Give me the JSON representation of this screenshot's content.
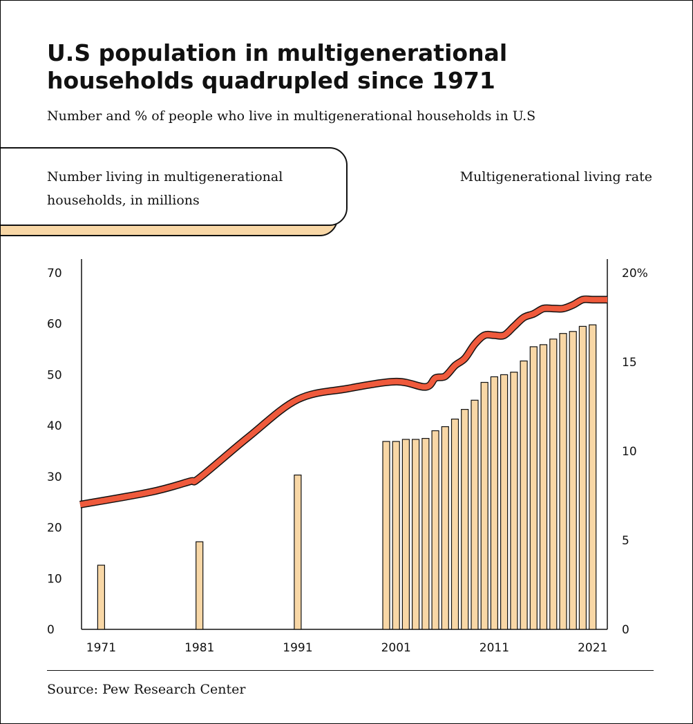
{
  "title": "U.S population in multigenerational households quadrupled since 1971",
  "subtitle": "Number and % of people who live in multigenerational households in U.S",
  "source": "Source: Pew Research Center",
  "colors": {
    "bar_fill": "#f8d7a6",
    "bar_stroke": "#111111",
    "line": "#ef5a3c",
    "line_outline": "#111111",
    "text": "#111111"
  },
  "chart_data": {
    "type": "bar",
    "x": [
      1971,
      1981,
      1991,
      2000,
      2001,
      2002,
      2003,
      2004,
      2005,
      2006,
      2007,
      2008,
      2009,
      2010,
      2011,
      2012,
      2013,
      2014,
      2015,
      2016,
      2017,
      2018,
      2019,
      2020,
      2021
    ],
    "series": [
      {
        "name": "Number living in multigenerational households, in millions",
        "type": "bar",
        "axis": "left",
        "values": [
          12.6,
          17.2,
          30.3,
          36.9,
          36.9,
          37.3,
          37.3,
          37.5,
          39.0,
          39.8,
          41.3,
          43.2,
          45.0,
          48.5,
          49.6,
          50.0,
          50.5,
          52.7,
          55.5,
          55.9,
          57.0,
          58.1,
          58.5,
          59.5,
          59.8
        ]
      },
      {
        "name": "Multigenerational living rate",
        "type": "line",
        "axis": "right",
        "x": [
          1971,
          1976,
          1980,
          1981,
          1986,
          1991,
          1996,
          2001,
          2004,
          2005,
          2006,
          2007,
          2008,
          2009,
          2010,
          2011,
          2012,
          2013,
          2014,
          2015,
          2016,
          2017,
          2018,
          2019,
          2020,
          2021,
          2022
        ],
        "values": [
          7.0,
          7.7,
          8.3,
          8.5,
          10.8,
          12.9,
          13.5,
          13.9,
          13.6,
          14.1,
          14.2,
          14.8,
          15.2,
          16.0,
          16.5,
          16.5,
          16.5,
          17.0,
          17.5,
          17.7,
          18.0,
          18.0,
          18.0,
          18.2,
          18.5,
          18.5,
          18.5
        ]
      }
    ],
    "left_axis": {
      "title": "Number living in multigenerational households, in millions",
      "ylim": [
        0,
        70
      ],
      "ticks": [
        "0",
        "10",
        "20",
        "30",
        "40",
        "50",
        "60",
        "70"
      ]
    },
    "right_axis": {
      "title": "Multigenerational living rate",
      "ylim": [
        0,
        20
      ],
      "ticks": [
        "0",
        "5",
        "10",
        "15",
        "20%"
      ]
    },
    "x_ticks": [
      "1971",
      "1981",
      "1991",
      "2001",
      "2011",
      "2021"
    ],
    "xlim": [
      1969,
      2022.5
    ],
    "grid": false,
    "legend": "none"
  }
}
